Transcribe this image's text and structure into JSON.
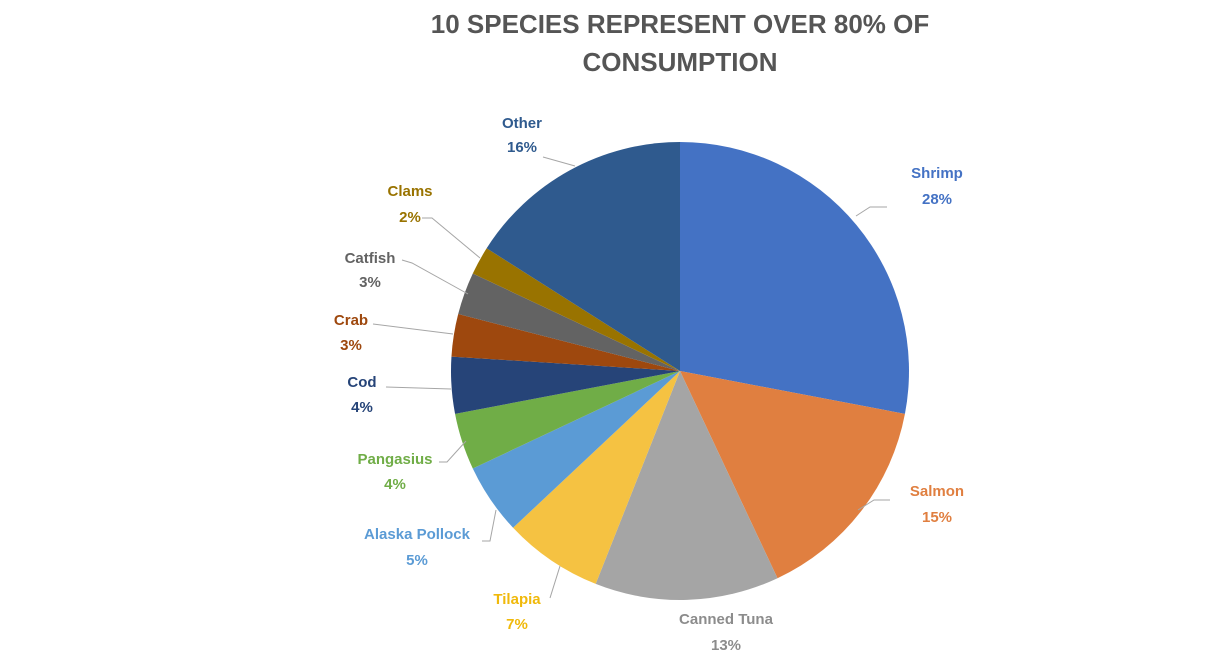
{
  "chart_data": {
    "type": "pie",
    "title_lines": [
      "10 SPECIES REPRESENT OVER 80% OF",
      "CONSUMPTION"
    ],
    "slices": [
      {
        "name": "Shrimp",
        "pct_label": "28%",
        "value": 28,
        "color": "#4472c4",
        "label_color": "#4472c4"
      },
      {
        "name": "Salmon",
        "pct_label": "15%",
        "value": 15,
        "color": "#e07f40",
        "label_color": "#e07f40"
      },
      {
        "name": "Canned Tuna",
        "pct_label": "13%",
        "value": 13,
        "color": "#a5a5a5",
        "label_color": "#8c8c8c"
      },
      {
        "name": "Tilapia",
        "pct_label": "7%",
        "value": 7,
        "color": "#f5c242",
        "label_color": "#f0b90b"
      },
      {
        "name": "Alaska Pollock",
        "pct_label": "5%",
        "value": 5,
        "color": "#5b9bd5",
        "label_color": "#5b9bd5"
      },
      {
        "name": "Pangasius",
        "pct_label": "4%",
        "value": 4,
        "color": "#70ad47",
        "label_color": "#70ad47"
      },
      {
        "name": "Cod",
        "pct_label": "4%",
        "value": 4,
        "color": "#264478",
        "label_color": "#264478"
      },
      {
        "name": "Crab",
        "pct_label": "3%",
        "value": 3,
        "color": "#9e480e",
        "label_color": "#9e480e"
      },
      {
        "name": "Catfish",
        "pct_label": "3%",
        "value": 3,
        "color": "#636363",
        "label_color": "#636363"
      },
      {
        "name": "Clams",
        "pct_label": "2%",
        "value": 2,
        "color": "#997300",
        "label_color": "#997300"
      },
      {
        "name": "Other",
        "pct_label": "16%",
        "value": 16,
        "color": "#2f5a8e",
        "label_color": "#2f5a8e"
      }
    ]
  }
}
